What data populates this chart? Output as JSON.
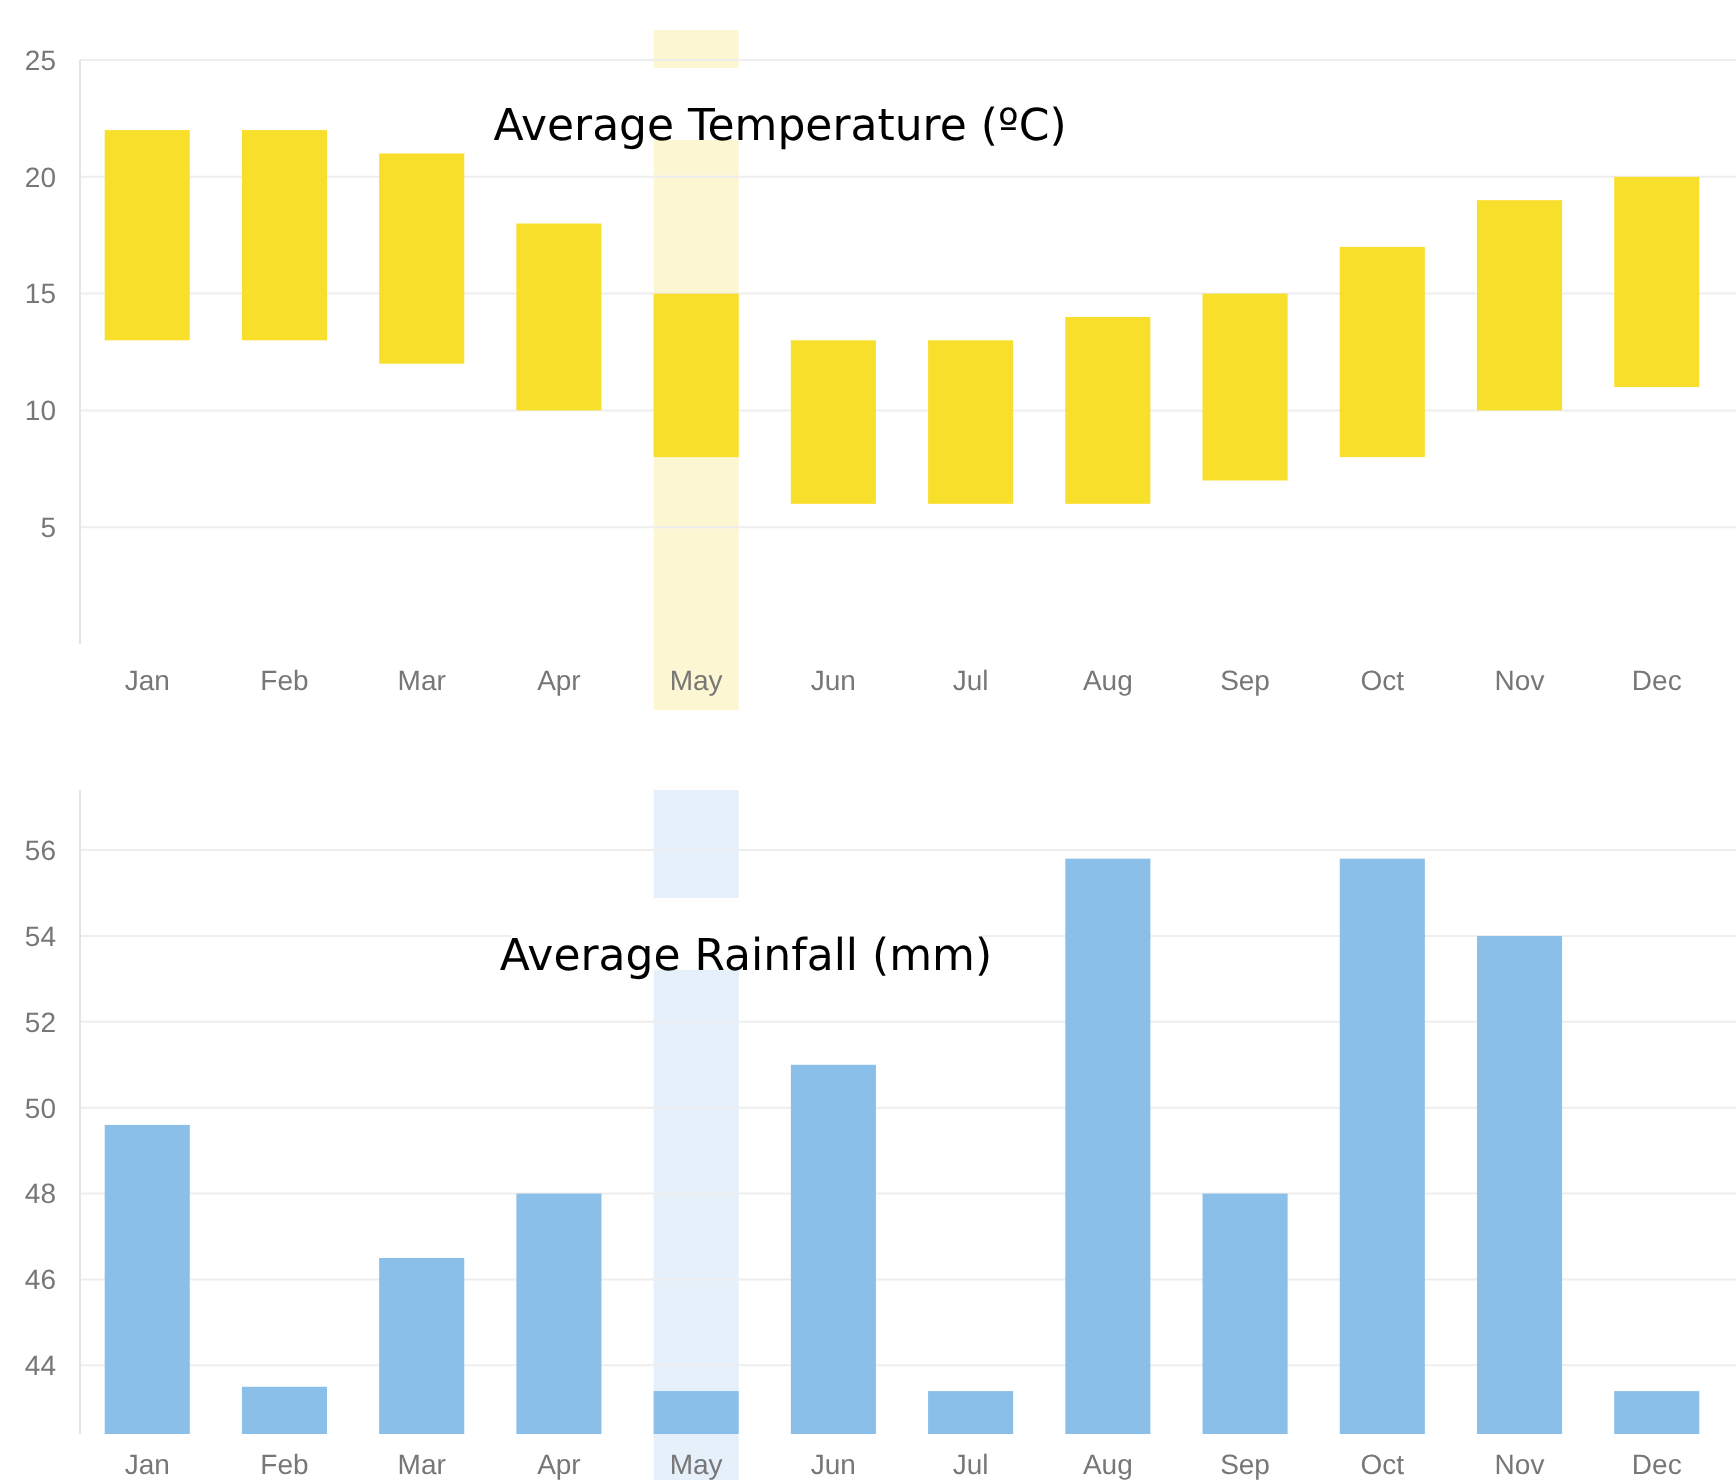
{
  "chart_data": [
    {
      "type": "bar",
      "title": "Average Temperature (ºC)",
      "categories": [
        "Jan",
        "Feb",
        "Mar",
        "Apr",
        "May",
        "Jun",
        "Jul",
        "Aug",
        "Sep",
        "Oct",
        "Nov",
        "Dec"
      ],
      "base": [
        13,
        13,
        12,
        10,
        8,
        6,
        6,
        6,
        7,
        8,
        10,
        11
      ],
      "values": [
        9,
        9,
        9,
        8,
        7,
        7,
        7,
        8,
        8,
        9,
        9,
        9
      ],
      "color": "#f8df2c",
      "ylim": [
        0,
        25
      ],
      "yticks": [
        5,
        10,
        15,
        20,
        25
      ],
      "grid": "y",
      "bands": [
        {
          "axis": "x",
          "from": "May",
          "to": "May",
          "color": "#fdf6d2"
        }
      ]
    },
    {
      "type": "bar",
      "title": "Average Rainfall (mm)",
      "categories": [
        "Jan",
        "Feb",
        "Mar",
        "Apr",
        "May",
        "Jun",
        "Jul",
        "Aug",
        "Sep",
        "Oct",
        "Nov",
        "Dec"
      ],
      "values": [
        49.6,
        43.5,
        46.5,
        48,
        43.4,
        51,
        43.4,
        55.8,
        48,
        55.8,
        54,
        43.4
      ],
      "color": "#89bfe9",
      "ylim": [
        42.4,
        57.4
      ],
      "yticks": [
        44,
        46,
        48,
        50,
        52,
        54,
        56
      ],
      "grid": "y",
      "bands": [
        {
          "axis": "x",
          "from": "May",
          "to": "May",
          "color": "#e6f0fa"
        }
      ]
    }
  ]
}
